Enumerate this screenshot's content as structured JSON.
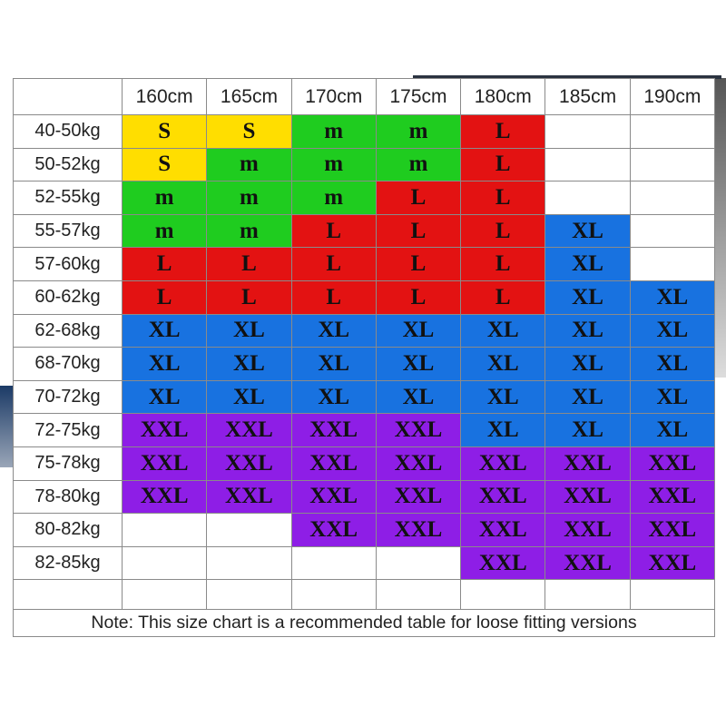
{
  "heights": [
    "160cm",
    "165cm",
    "170cm",
    "175cm",
    "180cm",
    "185cm",
    "190cm"
  ],
  "size_colors": {
    "S": "#ffde00",
    "m": "#1fcc1f",
    "L": "#e31212",
    "XL": "#1872e0",
    "XXL": "#8e1ee6"
  },
  "rows": [
    {
      "weight": "40-50kg",
      "sizes": [
        "S",
        "S",
        "m",
        "m",
        "L",
        "",
        ""
      ]
    },
    {
      "weight": "50-52kg",
      "sizes": [
        "S",
        "m",
        "m",
        "m",
        "L",
        "",
        ""
      ]
    },
    {
      "weight": "52-55kg",
      "sizes": [
        "m",
        "m",
        "m",
        "L",
        "L",
        "",
        ""
      ]
    },
    {
      "weight": "55-57kg",
      "sizes": [
        "m",
        "m",
        "L",
        "L",
        "L",
        "XL",
        ""
      ]
    },
    {
      "weight": "57-60kg",
      "sizes": [
        "L",
        "L",
        "L",
        "L",
        "L",
        "XL",
        ""
      ]
    },
    {
      "weight": "60-62kg",
      "sizes": [
        "L",
        "L",
        "L",
        "L",
        "L",
        "XL",
        "XL"
      ]
    },
    {
      "weight": "62-68kg",
      "sizes": [
        "XL",
        "XL",
        "XL",
        "XL",
        "XL",
        "XL",
        "XL"
      ]
    },
    {
      "weight": "68-70kg",
      "sizes": [
        "XL",
        "XL",
        "XL",
        "XL",
        "XL",
        "XL",
        "XL"
      ]
    },
    {
      "weight": "70-72kg",
      "sizes": [
        "XL",
        "XL",
        "XL",
        "XL",
        "XL",
        "XL",
        "XL"
      ]
    },
    {
      "weight": "72-75kg",
      "sizes": [
        "XXL",
        "XXL",
        "XXL",
        "XXL",
        "XL",
        "XL",
        "XL"
      ]
    },
    {
      "weight": "75-78kg",
      "sizes": [
        "XXL",
        "XXL",
        "XXL",
        "XXL",
        "XXL",
        "XXL",
        "XXL"
      ]
    },
    {
      "weight": "78-80kg",
      "sizes": [
        "XXL",
        "XXL",
        "XXL",
        "XXL",
        "XXL",
        "XXL",
        "XXL"
      ]
    },
    {
      "weight": "80-82kg",
      "sizes": [
        "",
        "",
        "XXL",
        "XXL",
        "XXL",
        "XXL",
        "XXL"
      ]
    },
    {
      "weight": "82-85kg",
      "sizes": [
        "",
        "",
        "",
        "",
        "XXL",
        "XXL",
        "XXL"
      ]
    }
  ],
  "note": "Note: This size chart is a recommended table for loose fitting versions"
}
